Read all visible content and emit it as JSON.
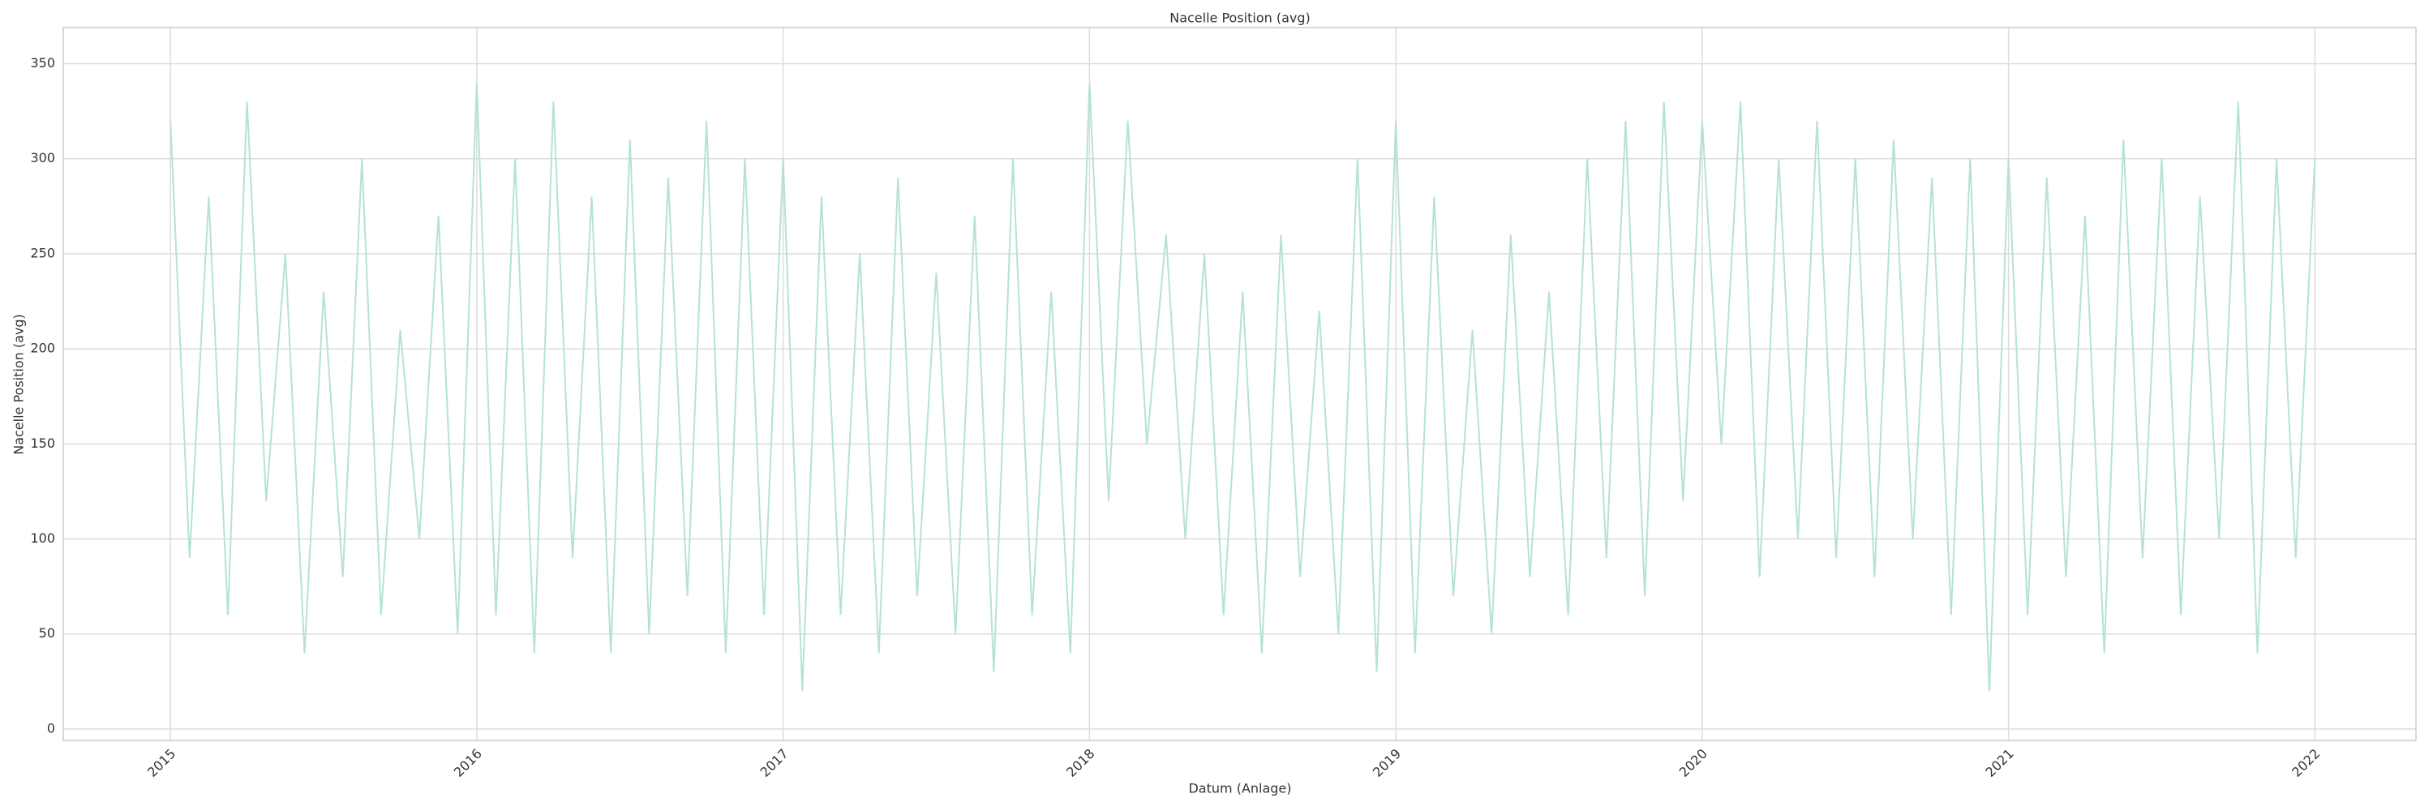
{
  "chart_data": {
    "type": "line",
    "title": "Nacelle Position (avg)",
    "x_label": "Datum (Anlage)",
    "y_label": "Nacelle Position (avg)",
    "x": [
      2015,
      2015.0625,
      2015.125,
      2015.1875,
      2015.25,
      2015.3125,
      2015.375,
      2015.4375,
      2015.5,
      2015.5625,
      2015.625,
      2015.6875,
      2015.75,
      2015.8125,
      2015.875,
      2015.9375,
      2016,
      2016.0625,
      2016.125,
      2016.1875,
      2016.25,
      2016.3125,
      2016.375,
      2016.4375,
      2016.5,
      2016.5625,
      2016.625,
      2016.6875,
      2016.75,
      2016.8125,
      2016.875,
      2016.9375,
      2017,
      2017.0625,
      2017.125,
      2017.1875,
      2017.25,
      2017.3125,
      2017.375,
      2017.4375,
      2017.5,
      2017.5625,
      2017.625,
      2017.6875,
      2017.75,
      2017.8125,
      2017.875,
      2017.9375,
      2018,
      2018.0625,
      2018.125,
      2018.1875,
      2018.25,
      2018.3125,
      2018.375,
      2018.4375,
      2018.5,
      2018.5625,
      2018.625,
      2018.6875,
      2018.75,
      2018.8125,
      2018.875,
      2018.9375,
      2019,
      2019.0625,
      2019.125,
      2019.1875,
      2019.25,
      2019.3125,
      2019.375,
      2019.4375,
      2019.5,
      2019.5625,
      2019.625,
      2019.6875,
      2019.75,
      2019.8125,
      2019.875,
      2019.9375,
      2020,
      2020.0625,
      2020.125,
      2020.1875,
      2020.25,
      2020.3125,
      2020.375,
      2020.4375,
      2020.5,
      2020.5625,
      2020.625,
      2020.6875,
      2020.75,
      2020.8125,
      2020.875,
      2020.9375,
      2021,
      2021.0625,
      2021.125,
      2021.1875,
      2021.25,
      2021.3125,
      2021.375,
      2021.4375,
      2021.5,
      2021.5625,
      2021.625,
      2021.6875,
      2021.75,
      2021.8125,
      2021.875,
      2021.9375,
      2022
    ],
    "values": [
      320,
      90,
      280,
      60,
      330,
      120,
      250,
      40,
      230,
      80,
      300,
      60,
      210,
      100,
      270,
      50,
      340,
      60,
      300,
      40,
      330,
      90,
      280,
      40,
      310,
      50,
      290,
      70,
      320,
      40,
      300,
      60,
      300,
      20,
      280,
      60,
      250,
      40,
      290,
      70,
      240,
      50,
      270,
      30,
      300,
      60,
      230,
      40,
      340,
      120,
      320,
      150,
      260,
      100,
      250,
      60,
      230,
      40,
      260,
      80,
      220,
      50,
      300,
      30,
      320,
      40,
      280,
      70,
      210,
      50,
      260,
      80,
      230,
      60,
      300,
      90,
      320,
      70,
      330,
      120,
      320,
      150,
      330,
      80,
      300,
      100,
      320,
      90,
      300,
      80,
      310,
      100,
      290,
      60,
      300,
      20,
      300,
      60,
      290,
      80,
      270,
      40,
      310,
      90,
      300,
      60,
      280,
      100,
      330,
      40,
      300,
      90,
      300
    ],
    "color": "#b5e3d2",
    "xlim": [
      2014.65,
      2022.33
    ],
    "xticks": [
      2015,
      2016,
      2017,
      2018,
      2019,
      2020,
      2021,
      2022
    ],
    "ylim": [
      -6,
      369
    ],
    "yticks": [
      0,
      50,
      100,
      150,
      200,
      250,
      300,
      350
    ],
    "grid": true
  }
}
